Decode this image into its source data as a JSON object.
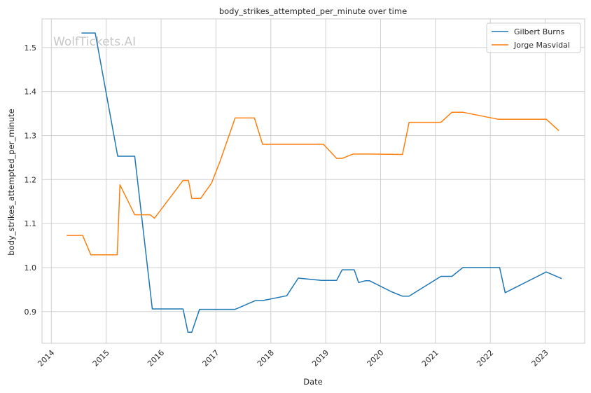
{
  "chart_data": {
    "type": "line",
    "title": "body_strikes_attempted_per_minute over time",
    "xlabel": "Date",
    "ylabel": "body_strikes_attempted_per_minute",
    "watermark": "WolfTickets.AI",
    "xlim": [
      2013.83,
      2023.72
    ],
    "ylim": [
      0.828,
      1.565
    ],
    "x_ticks": [
      "2014",
      "2015",
      "2016",
      "2017",
      "2018",
      "2019",
      "2020",
      "2021",
      "2022",
      "2023"
    ],
    "y_ticks": [
      "0.9",
      "1.0",
      "1.1",
      "1.2",
      "1.3",
      "1.4",
      "1.5"
    ],
    "grid": true,
    "legend_position": "top-right",
    "series": [
      {
        "name": "Gilbert Burns",
        "color": "#1f77b4",
        "points": [
          [
            2014.55,
            1.533
          ],
          [
            2014.8,
            1.533
          ],
          [
            2015.21,
            1.253
          ],
          [
            2015.52,
            1.253
          ],
          [
            2015.84,
            0.906
          ],
          [
            2016.4,
            0.906
          ],
          [
            2016.49,
            0.853
          ],
          [
            2016.56,
            0.853
          ],
          [
            2016.7,
            0.905
          ],
          [
            2017.35,
            0.905
          ],
          [
            2017.72,
            0.925
          ],
          [
            2017.85,
            0.925
          ],
          [
            2018.29,
            0.936
          ],
          [
            2018.5,
            0.976
          ],
          [
            2018.92,
            0.971
          ],
          [
            2019.2,
            0.971
          ],
          [
            2019.3,
            0.995
          ],
          [
            2019.52,
            0.995
          ],
          [
            2019.6,
            0.966
          ],
          [
            2019.72,
            0.97
          ],
          [
            2019.8,
            0.97
          ],
          [
            2020.2,
            0.945
          ],
          [
            2020.4,
            0.935
          ],
          [
            2020.52,
            0.935
          ],
          [
            2021.1,
            0.98
          ],
          [
            2021.3,
            0.98
          ],
          [
            2021.5,
            1.0
          ],
          [
            2022.17,
            1.0
          ],
          [
            2022.27,
            0.943
          ],
          [
            2023.02,
            0.99
          ],
          [
            2023.3,
            0.975
          ]
        ]
      },
      {
        "name": "Jorge Masvidal",
        "color": "#ff7f0e",
        "points": [
          [
            2014.28,
            1.073
          ],
          [
            2014.57,
            1.073
          ],
          [
            2014.72,
            1.029
          ],
          [
            2015.2,
            1.029
          ],
          [
            2015.25,
            1.188
          ],
          [
            2015.52,
            1.12
          ],
          [
            2015.8,
            1.12
          ],
          [
            2015.88,
            1.112
          ],
          [
            2016.4,
            1.198
          ],
          [
            2016.5,
            1.198
          ],
          [
            2016.56,
            1.157
          ],
          [
            2016.72,
            1.157
          ],
          [
            2016.92,
            1.192
          ],
          [
            2017.07,
            1.24
          ],
          [
            2017.35,
            1.34
          ],
          [
            2017.7,
            1.34
          ],
          [
            2017.85,
            1.28
          ],
          [
            2018.96,
            1.28
          ],
          [
            2019.2,
            1.248
          ],
          [
            2019.3,
            1.248
          ],
          [
            2019.5,
            1.258
          ],
          [
            2019.8,
            1.258
          ],
          [
            2020.4,
            1.257
          ],
          [
            2020.52,
            1.33
          ],
          [
            2021.1,
            1.33
          ],
          [
            2021.3,
            1.353
          ],
          [
            2021.5,
            1.353
          ],
          [
            2022.14,
            1.337
          ],
          [
            2023.02,
            1.337
          ],
          [
            2023.25,
            1.311
          ]
        ]
      }
    ]
  }
}
